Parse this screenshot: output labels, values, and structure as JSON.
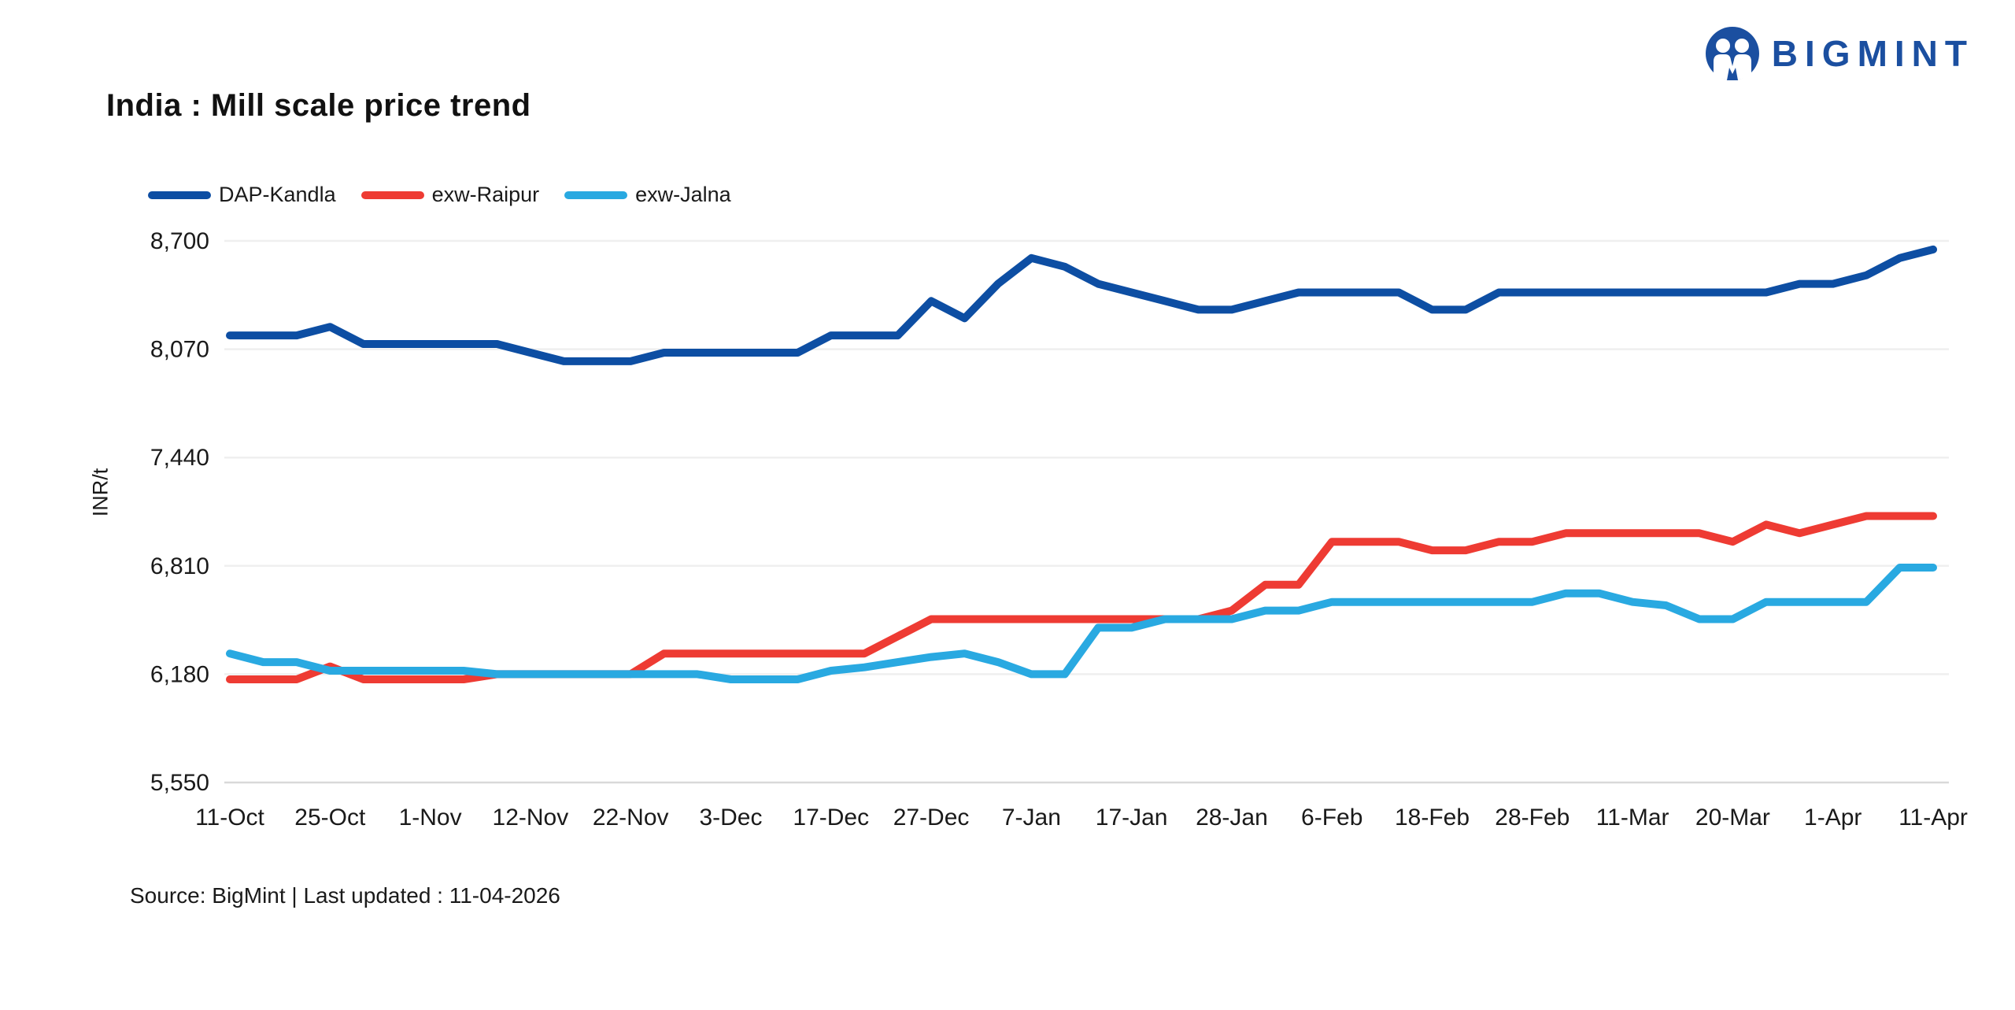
{
  "page": {
    "title": "India : Mill scale price trend",
    "brand": "BIGMINT",
    "brand_color": "#1b4fa0",
    "source_note": "Source: BigMint | Last updated : 11-04-2026"
  },
  "chart_data": {
    "type": "line",
    "title": "India : Mill scale price trend",
    "ylabel": "INR/t",
    "xlabel": "",
    "ylim": [
      5550,
      8700
    ],
    "y_ticks": [
      8700,
      8070,
      7440,
      6810,
      6180,
      5550
    ],
    "y_tick_labels": [
      "8,700",
      "8,070",
      "7,440",
      "6,810",
      "6,180",
      "5,550"
    ],
    "x_tick_labels": [
      "11-Oct",
      "25-Oct",
      "1-Nov",
      "12-Nov",
      "22-Nov",
      "3-Dec",
      "17-Dec",
      "27-Dec",
      "7-Jan",
      "17-Jan",
      "28-Jan",
      "6-Feb",
      "18-Feb",
      "28-Feb",
      "11-Mar",
      "20-Mar",
      "1-Apr",
      "11-Apr"
    ],
    "points_per_tick": 3,
    "grid": "horizontal",
    "grid_color": "#efefef",
    "baseline_color": "#d9d9d9",
    "legend_position": "top-left",
    "series": [
      {
        "name": "DAP-Kandla",
        "color": "#0d4ea3",
        "values": [
          8150,
          8150,
          8150,
          8200,
          8100,
          8100,
          8100,
          8100,
          8100,
          8050,
          8000,
          8000,
          8000,
          8050,
          8050,
          8050,
          8050,
          8050,
          8150,
          8150,
          8150,
          8350,
          8250,
          8450,
          8600,
          8550,
          8450,
          8400,
          8350,
          8300,
          8300,
          8350,
          8400,
          8400,
          8400,
          8400,
          8300,
          8300,
          8400,
          8400,
          8400,
          8400,
          8400,
          8400,
          8400,
          8400,
          8400,
          8450,
          8450,
          8500,
          8600,
          8650
        ]
      },
      {
        "name": "exw-Raipur",
        "color": "#ee3b33",
        "values": [
          6150,
          6150,
          6150,
          6225,
          6150,
          6150,
          6150,
          6150,
          6180,
          6180,
          6180,
          6180,
          6180,
          6300,
          6300,
          6300,
          6300,
          6300,
          6300,
          6300,
          6400,
          6500,
          6500,
          6500,
          6500,
          6500,
          6500,
          6500,
          6500,
          6500,
          6550,
          6700,
          6700,
          6950,
          6950,
          6950,
          6900,
          6900,
          6950,
          6950,
          7000,
          7000,
          7000,
          7000,
          7000,
          6950,
          7050,
          7000,
          7050,
          7100,
          7100,
          7100
        ]
      },
      {
        "name": "exw-Jalna",
        "color": "#29a9e1",
        "values": [
          6300,
          6250,
          6250,
          6200,
          6200,
          6200,
          6200,
          6200,
          6180,
          6180,
          6180,
          6180,
          6180,
          6180,
          6180,
          6150,
          6150,
          6150,
          6200,
          6220,
          6250,
          6280,
          6300,
          6250,
          6180,
          6180,
          6450,
          6450,
          6500,
          6500,
          6500,
          6550,
          6550,
          6600,
          6600,
          6600,
          6600,
          6600,
          6600,
          6600,
          6650,
          6650,
          6600,
          6580,
          6500,
          6500,
          6600,
          6600,
          6600,
          6600,
          6800,
          6800
        ]
      }
    ]
  }
}
